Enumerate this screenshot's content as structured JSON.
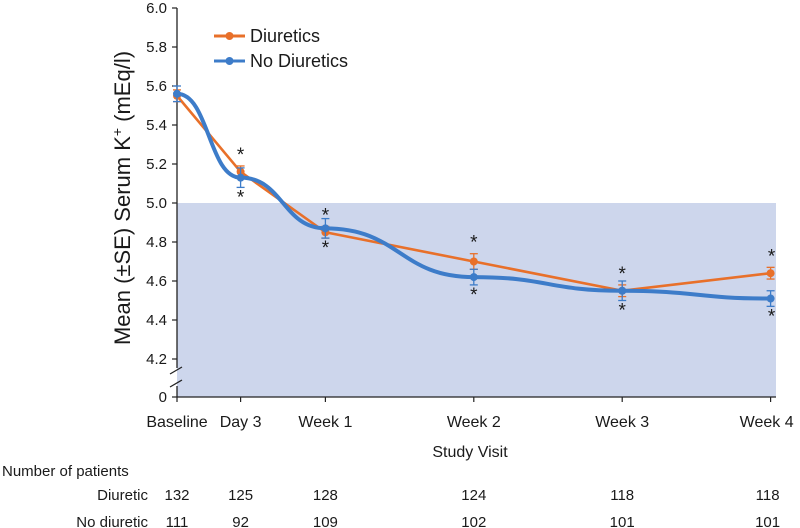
{
  "chart_data": {
    "type": "line",
    "xlabel": "Study Visit",
    "ylabel": "Mean (±SE) Serum K+ (mEq/l)",
    "ylabel_parts": {
      "before": "Mean (±SE) Serum K",
      "superscript": "+",
      "after": " (mEq/l)"
    },
    "ylim": [
      4.0,
      6.0
    ],
    "axis_break_label": "0",
    "y_ticks": [
      "6.0",
      "5.8",
      "5.6",
      "5.4",
      "5.2",
      "5.0",
      "4.8",
      "4.6",
      "4.4",
      "4.2"
    ],
    "y_tick_values": [
      6.0,
      5.8,
      5.6,
      5.4,
      5.2,
      5.0,
      4.8,
      4.6,
      4.4,
      4.2
    ],
    "normal_band": [
      4.0,
      5.0
    ],
    "band_color": "#cdd6ec",
    "categories": [
      "Baseline",
      "Day 3",
      "Week 1",
      "Week 2",
      "Week 3",
      "Week 4"
    ],
    "x_days": [
      0,
      3,
      7,
      14,
      21,
      28
    ],
    "series": [
      {
        "name": "Diuretics",
        "color": "#e8702a",
        "values": [
          5.55,
          5.16,
          4.85,
          4.7,
          4.55,
          4.64
        ],
        "se": [
          0.03,
          0.03,
          0.03,
          0.04,
          0.03,
          0.03
        ],
        "significant": [
          false,
          true,
          true,
          true,
          true,
          true
        ],
        "star_position": "above"
      },
      {
        "name": "No Diuretics",
        "color": "#3d7cc9",
        "values": [
          5.56,
          5.13,
          4.87,
          4.62,
          4.55,
          4.51
        ],
        "se": [
          0.04,
          0.05,
          0.05,
          0.04,
          0.05,
          0.04
        ],
        "significant": [
          false,
          true,
          true,
          true,
          true,
          true
        ],
        "star_position": "below"
      }
    ],
    "significance_marker": "*",
    "legend_position": "top-left"
  },
  "patients_table": {
    "title": "Number of patients",
    "rows": [
      {
        "label": "Diuretic",
        "values": [
          "132",
          "125",
          "128",
          "124",
          "118",
          "118"
        ]
      },
      {
        "label": "No diuretic",
        "values": [
          "111",
          "92",
          "109",
          "102",
          "101",
          "101"
        ]
      }
    ]
  }
}
